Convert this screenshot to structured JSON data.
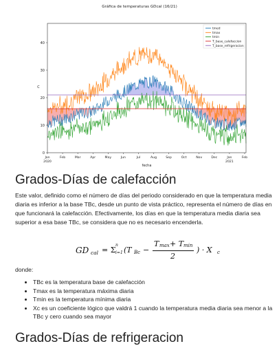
{
  "chart_data": {
    "type": "line",
    "title": "Gráfica de temperaturas GDcal (16/21)",
    "xlabel": "fecha",
    "ylabel": "C",
    "ylim": [
      0,
      47
    ],
    "yticks": [
      0,
      10,
      20,
      30,
      40
    ],
    "x_tick_labels": [
      "Jan\n2020",
      "Feb",
      "Mar",
      "Apr",
      "May",
      "Jun",
      "Jul",
      "Aug",
      "Sep",
      "Oct",
      "Nov",
      "Dec",
      "Jan\n2021",
      "Feb"
    ],
    "legend": [
      "tmed",
      "tmax",
      "tmin",
      "T_base_calefaccion",
      "T_base_refrigeracion"
    ],
    "legend_position": "top-right",
    "colors": {
      "tmed": "#1f77b4",
      "tmax": "#ff7f0e",
      "tmin": "#2ca02c",
      "calef": "#d62728",
      "refrig": "#9467bd",
      "fill_calef": "#f4a0a0",
      "fill_refrig": "#b8b8ee"
    },
    "T_base_calefaccion": 16,
    "T_base_refrigeracion": 21,
    "series_monthly_profile": {
      "tmed": [
        11,
        12,
        14,
        15,
        19,
        22,
        25,
        26,
        23,
        18,
        14,
        11,
        10,
        11
      ],
      "tmax": [
        16,
        17,
        20,
        22,
        27,
        32,
        35,
        36,
        31,
        25,
        19,
        15,
        14,
        16
      ],
      "tmin": [
        7,
        8,
        9,
        10,
        13,
        16,
        19,
        19,
        17,
        13,
        10,
        7,
        6,
        7
      ]
    }
  },
  "section1": {
    "title": "Grados-Días de calefacción",
    "paragraph": "Este valor, definido como el número de días del periodo considerado en que la temperatura media diaria es inferior a la base TBc, desde un punto de vista práctico, representa el número de días en que funcionará la calefacción. Efectivamente, los días en que la temperatura media diaria sea superior a esa base TBc, se considera que no es necesario encenderla."
  },
  "formula": {
    "lhs": "GD",
    "lhs_sub": "cal",
    "equals_sum": "= Σ",
    "sum_sub": "i=1",
    "sum_sup": "n",
    "open": "(T",
    "tbc_sub": "Bc",
    "minus": "−",
    "numerator": "T",
    "num_sub1": "max",
    "plus": " + T",
    "num_sub2": "min",
    "denominator": "2",
    "close": ") · X",
    "x_sub": "c"
  },
  "donde": "donde:",
  "items": [
    "TBc es la temperatura base de calefacción",
    "Tmax es la temperatura máxima diaria",
    "Tmin es la temperatura mínima diaria",
    "Xc es un coeficiente lógico que valdrá 1 cuando la temperatura media diaria sea menor a la TBc y cero cuando sea mayor"
  ],
  "section2": {
    "title": "Grados-Días de refrigeracion"
  }
}
